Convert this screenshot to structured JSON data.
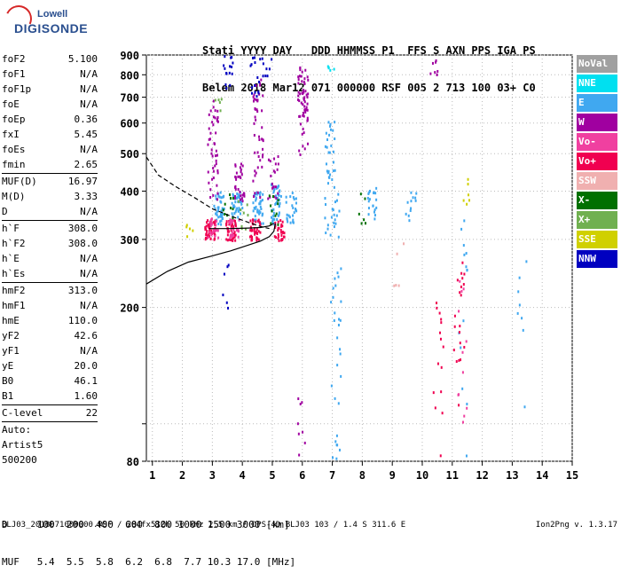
{
  "logo": {
    "line1": "Lowell",
    "line2": "DIGISONDE"
  },
  "header": {
    "line1": "Stati YYYY DAY   DDD HHMMSS P1  FFS S AXN PPS IGA PS",
    "line2": "Belem 2018 Mar12 071 000000 RSF 005 2 713 100 03+ C0"
  },
  "params": [
    {
      "k": "foF2",
      "v": "5.100"
    },
    {
      "k": "foF1",
      "v": "N/A"
    },
    {
      "k": "foF1p",
      "v": "N/A"
    },
    {
      "k": "foE",
      "v": "N/A"
    },
    {
      "k": "foEp",
      "v": "0.36"
    },
    {
      "k": "fxI",
      "v": "5.45"
    },
    {
      "k": "foEs",
      "v": "N/A"
    },
    {
      "k": "fmin",
      "v": "2.65"
    },
    {
      "k": "MUF(D)",
      "v": "16.97",
      "sep": true
    },
    {
      "k": "M(D)",
      "v": "3.33"
    },
    {
      "k": "D",
      "v": "N/A"
    },
    {
      "k": "h`F",
      "v": "308.0",
      "sep": true
    },
    {
      "k": "h`F2",
      "v": "308.0"
    },
    {
      "k": "h`E",
      "v": "N/A"
    },
    {
      "k": "h`Es",
      "v": "N/A"
    },
    {
      "k": "hmF2",
      "v": "313.0",
      "sep": true
    },
    {
      "k": "hmF1",
      "v": "N/A"
    },
    {
      "k": "hmE",
      "v": "110.0"
    },
    {
      "k": "yF2",
      "v": "42.6"
    },
    {
      "k": "yF1",
      "v": "N/A"
    },
    {
      "k": "yE",
      "v": "20.0"
    },
    {
      "k": "B0",
      "v": "46.1"
    },
    {
      "k": "B1",
      "v": "1.60"
    },
    {
      "k": "C-level",
      "v": "22",
      "sep": true
    },
    {
      "k": "Auto:",
      "v": "",
      "sep": true
    },
    {
      "k": "Artist5",
      "v": ""
    },
    {
      "k": "500200",
      "v": ""
    }
  ],
  "legend": [
    {
      "label": "NoVal",
      "color": "#a0a0a0"
    },
    {
      "label": "NNE",
      "color": "#00e0f0"
    },
    {
      "label": "E",
      "color": "#40a8f0"
    },
    {
      "label": "W",
      "color": "#a000a0"
    },
    {
      "label": "Vo-",
      "color": "#f040a0"
    },
    {
      "label": "Vo+",
      "color": "#f00050"
    },
    {
      "label": "SSW",
      "color": "#f0b0b0"
    },
    {
      "label": "X-",
      "color": "#007000"
    },
    {
      "label": "X+",
      "color": "#70b050"
    },
    {
      "label": "SSE",
      "color": "#d0d000"
    },
    {
      "label": "NNW",
      "color": "#0000c0"
    }
  ],
  "muf_table": {
    "line1": "D     100  200  400  600  800 1000 1500 3000 [km]",
    "line2": "MUF   5.4  5.5  5.8  6.2  6.8  7.7 10.3 17.0 [MHz]"
  },
  "footer": {
    "left": "BLJ03_2018071000000.RSF / 284fx512h 50 kHz 2.5 km / DPS-4D BLJ03 103 / 1.4 S 311.6 E",
    "right": "Ion2Png v. 1.3.17"
  },
  "chart_data": {
    "type": "scatter",
    "xlim": [
      0.8,
      15
    ],
    "ylim": [
      80,
      900
    ],
    "x_ticks": [
      1,
      2,
      3,
      4,
      5,
      6,
      7,
      8,
      9,
      10,
      11,
      12,
      13,
      14,
      15
    ],
    "y_ticks": [
      80,
      100,
      200,
      300,
      400,
      500,
      600,
      700,
      800,
      900
    ],
    "y_tick_labels": [
      "80",
      "",
      "200",
      "300",
      "400",
      "500",
      "600",
      "700",
      "800",
      "900"
    ],
    "grid": true,
    "series": [
      {
        "name": "E",
        "color": "#40a8f0",
        "clusters": [
          {
            "x": 3.2,
            "y0": 330,
            "y1": 400,
            "n": 40
          },
          {
            "x": 3.8,
            "y0": 330,
            "y1": 400,
            "n": 40
          },
          {
            "x": 4.5,
            "y0": 330,
            "y1": 400,
            "n": 40
          },
          {
            "x": 5.1,
            "y0": 330,
            "y1": 420,
            "n": 40
          },
          {
            "x": 5.6,
            "y0": 330,
            "y1": 400,
            "n": 25
          },
          {
            "x": 6.9,
            "y0": 300,
            "y1": 620,
            "n": 40
          },
          {
            "x": 7.1,
            "y0": 80,
            "y1": 420,
            "n": 40
          },
          {
            "x": 8.3,
            "y0": 340,
            "y1": 410,
            "n": 20
          },
          {
            "x": 9.6,
            "y0": 330,
            "y1": 400,
            "n": 12
          },
          {
            "x": 11.3,
            "y0": 80,
            "y1": 350,
            "n": 14
          },
          {
            "x": 13.3,
            "y0": 100,
            "y1": 280,
            "n": 8
          }
        ]
      },
      {
        "name": "W",
        "color": "#a000a0",
        "clusters": [
          {
            "x": 3.0,
            "y0": 380,
            "y1": 700,
            "n": 45
          },
          {
            "x": 3.9,
            "y0": 380,
            "y1": 480,
            "n": 30
          },
          {
            "x": 4.5,
            "y0": 380,
            "y1": 800,
            "n": 45
          },
          {
            "x": 5.0,
            "y0": 380,
            "y1": 500,
            "n": 20
          },
          {
            "x": 6.0,
            "y0": 500,
            "y1": 850,
            "n": 60
          },
          {
            "x": 6.0,
            "y0": 80,
            "y1": 120,
            "n": 8
          },
          {
            "x": 10.4,
            "y0": 800,
            "y1": 880,
            "n": 8
          }
        ]
      },
      {
        "name": "Vo+",
        "color": "#f00050",
        "clusters": [
          {
            "x": 2.9,
            "y0": 300,
            "y1": 340,
            "n": 45
          },
          {
            "x": 3.6,
            "y0": 300,
            "y1": 340,
            "n": 45
          },
          {
            "x": 4.4,
            "y0": 300,
            "y1": 340,
            "n": 40
          },
          {
            "x": 5.2,
            "y0": 300,
            "y1": 340,
            "n": 30
          },
          {
            "x": 10.5,
            "y0": 80,
            "y1": 220,
            "n": 15
          },
          {
            "x": 11.2,
            "y0": 100,
            "y1": 280,
            "n": 20
          }
        ]
      },
      {
        "name": "Vo-",
        "color": "#f040a0",
        "clusters": [
          {
            "x": 3.0,
            "y0": 305,
            "y1": 345,
            "n": 25
          },
          {
            "x": 3.7,
            "y0": 305,
            "y1": 345,
            "n": 25
          },
          {
            "x": 11.3,
            "y0": 100,
            "y1": 240,
            "n": 12
          }
        ]
      },
      {
        "name": "NNW",
        "color": "#0000c0",
        "clusters": [
          {
            "x": 3.4,
            "y0": 200,
            "y1": 260,
            "n": 6
          },
          {
            "x": 3.5,
            "y0": 740,
            "y1": 900,
            "n": 15
          },
          {
            "x": 4.4,
            "y0": 700,
            "y1": 900,
            "n": 15
          },
          {
            "x": 4.8,
            "y0": 800,
            "y1": 900,
            "n": 8
          }
        ]
      },
      {
        "name": "X-",
        "color": "#007000",
        "clusters": [
          {
            "x": 3.5,
            "y0": 320,
            "y1": 400,
            "n": 10
          },
          {
            "x": 5.0,
            "y0": 320,
            "y1": 420,
            "n": 10
          },
          {
            "x": 8.0,
            "y0": 330,
            "y1": 400,
            "n": 6
          }
        ]
      },
      {
        "name": "X+",
        "color": "#70b050",
        "clusters": [
          {
            "x": 3.2,
            "y0": 650,
            "y1": 700,
            "n": 5
          },
          {
            "x": 4.0,
            "y0": 320,
            "y1": 380,
            "n": 8
          }
        ]
      },
      {
        "name": "SSE",
        "color": "#d0d000",
        "clusters": [
          {
            "x": 11.5,
            "y0": 370,
            "y1": 440,
            "n": 6
          },
          {
            "x": 2.2,
            "y0": 300,
            "y1": 340,
            "n": 5
          }
        ]
      },
      {
        "name": "NNE",
        "color": "#00e0f0",
        "clusters": [
          {
            "x": 7.0,
            "y0": 800,
            "y1": 880,
            "n": 5
          }
        ]
      },
      {
        "name": "SSW",
        "color": "#f0b0b0",
        "clusters": [
          {
            "x": 9.2,
            "y0": 200,
            "y1": 300,
            "n": 5
          }
        ]
      }
    ],
    "traces": [
      {
        "style": "solid",
        "points": [
          [
            0.8,
            230
          ],
          [
            1.5,
            248
          ],
          [
            2.2,
            262
          ],
          [
            3.0,
            272
          ],
          [
            3.6,
            280
          ],
          [
            4.2,
            290
          ],
          [
            4.6,
            297
          ],
          [
            4.9,
            305
          ],
          [
            5.05,
            315
          ],
          [
            5.1,
            330
          ]
        ]
      },
      {
        "style": "solid",
        "points": [
          [
            2.9,
            320
          ],
          [
            3.6,
            320
          ],
          [
            4.2,
            321
          ],
          [
            4.6,
            322
          ],
          [
            4.9,
            325
          ],
          [
            5.05,
            330
          ]
        ]
      },
      {
        "style": "dashed",
        "points": [
          [
            0.8,
            490
          ],
          [
            1.2,
            440
          ],
          [
            1.8,
            410
          ],
          [
            2.4,
            385
          ],
          [
            3.0,
            360
          ],
          [
            3.6,
            345
          ],
          [
            4.2,
            332
          ],
          [
            4.6,
            324
          ],
          [
            4.9,
            320
          ]
        ]
      }
    ]
  }
}
